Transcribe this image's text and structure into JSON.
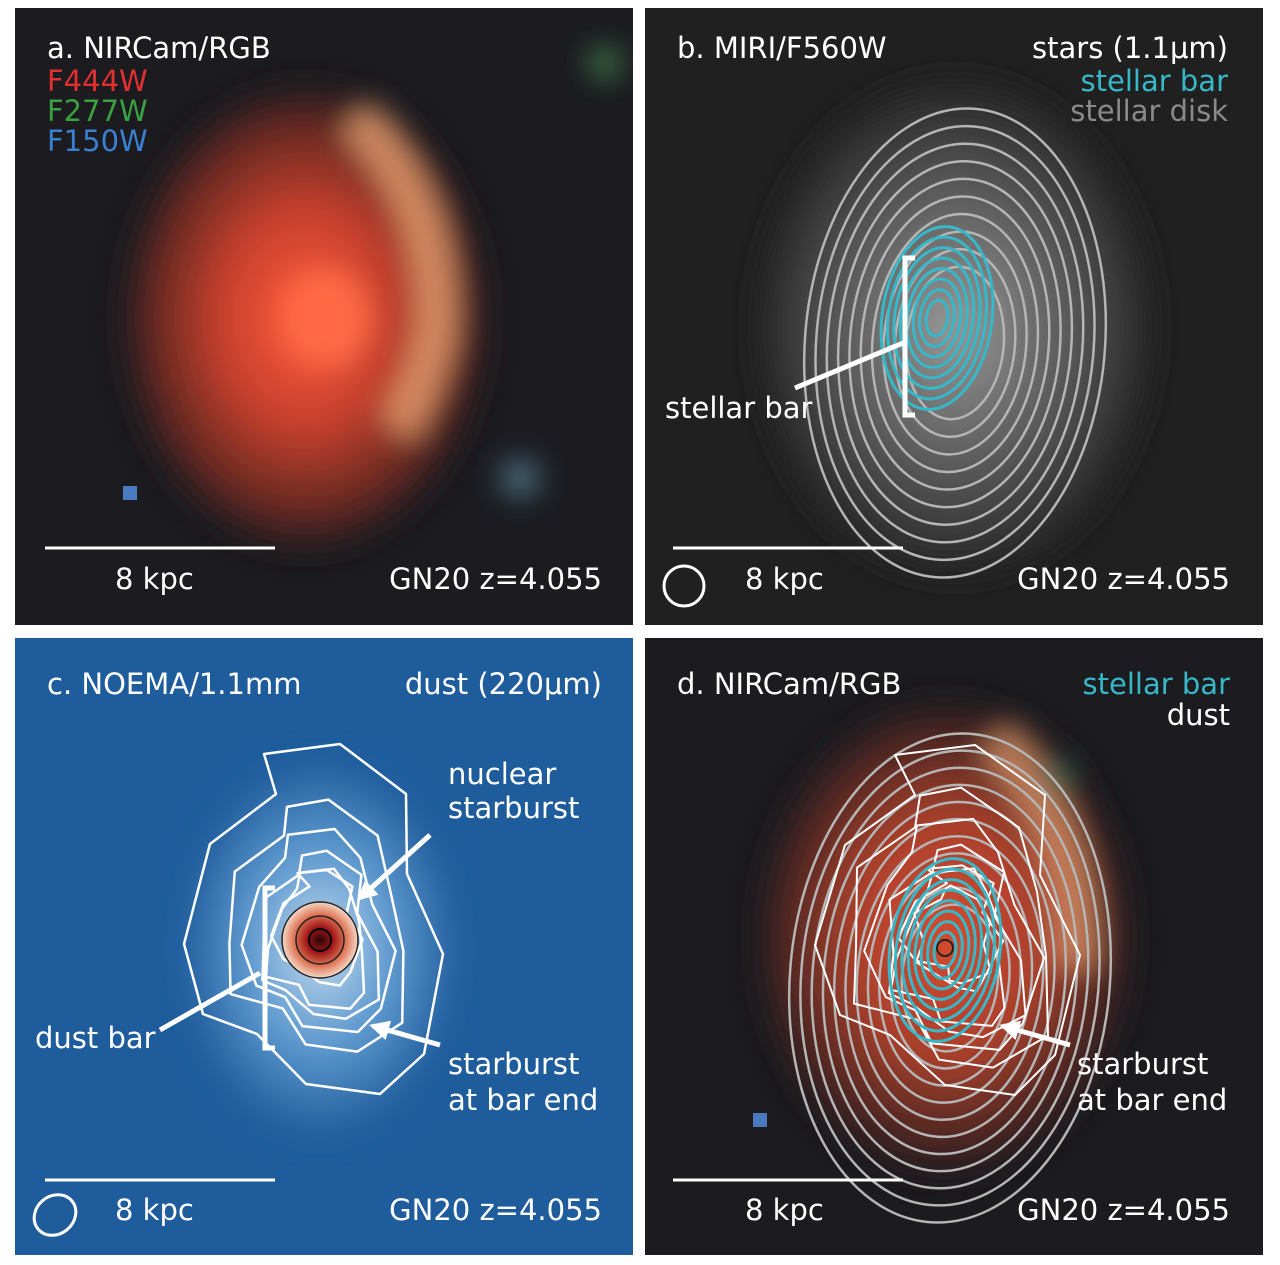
{
  "panels": [
    {
      "title": "a. NIRCam/RGB",
      "legend": [
        "F444W",
        "F277W",
        "F150W"
      ],
      "scale_bar": "8 kpc",
      "target": "GN20 z=4.055"
    },
    {
      "title": "b. MIRI/F560W",
      "legend": [
        "stars (1.1μm)",
        "stellar bar",
        "stellar disk"
      ],
      "annotations": [
        [
          "stellar bar"
        ]
      ],
      "scale_bar": "8 kpc",
      "target": "GN20 z=4.055"
    },
    {
      "title": "c. NOEMA/1.1mm",
      "legend": [
        "dust (220μm)"
      ],
      "annotations": [
        [
          "nuclear",
          "starburst"
        ],
        [
          "dust bar"
        ],
        [
          "starburst",
          "at bar end"
        ]
      ],
      "scale_bar": "8 kpc",
      "target": "GN20 z=4.055"
    },
    {
      "title": "d. NIRCam/RGB",
      "legend": [
        "stellar bar",
        "dust"
      ],
      "annotations": [
        [
          "starburst",
          "at bar end"
        ]
      ],
      "scale_bar": "8 kpc",
      "target": "GN20 z=4.055"
    }
  ]
}
